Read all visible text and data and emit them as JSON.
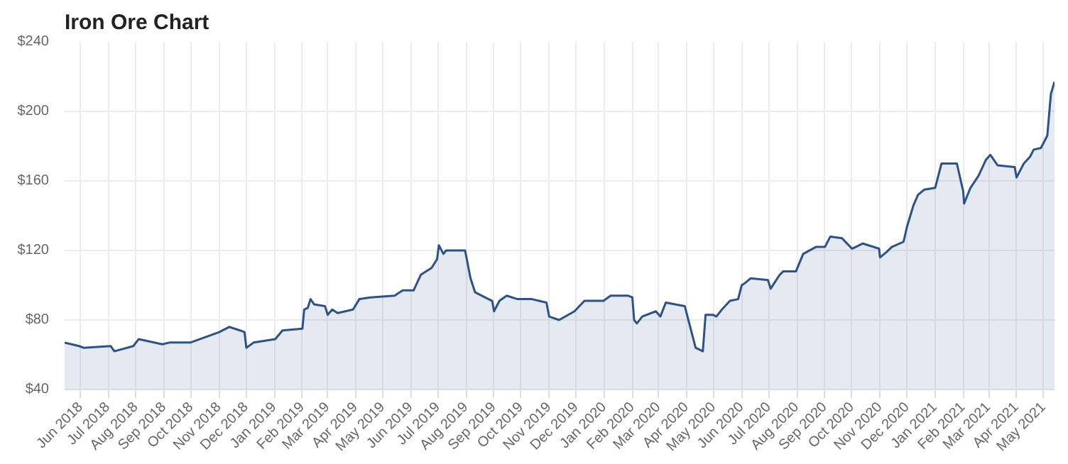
{
  "chart_data": {
    "type": "area",
    "title": "Iron Ore Chart",
    "x": [
      "2018-05-14",
      "2018-05-30",
      "2018-06-04",
      "2018-07-04",
      "2018-07-08",
      "2018-07-29",
      "2018-08-04",
      "2018-08-30",
      "2018-09-07",
      "2018-09-30",
      "2018-11-01",
      "2018-11-12",
      "2018-11-24",
      "2018-11-29",
      "2018-12-01",
      "2018-12-09",
      "2019-01-02",
      "2019-01-10",
      "2019-02-01",
      "2019-02-03",
      "2019-02-07",
      "2019-02-10",
      "2019-02-14",
      "2019-02-26",
      "2019-03-01",
      "2019-03-06",
      "2019-03-12",
      "2019-03-29",
      "2019-04-05",
      "2019-04-17",
      "2019-05-14",
      "2019-05-23",
      "2019-06-04",
      "2019-06-12",
      "2019-06-24",
      "2019-06-30",
      "2019-07-02",
      "2019-07-07",
      "2019-07-10",
      "2019-07-31",
      "2019-08-06",
      "2019-08-11",
      "2019-08-22",
      "2019-08-30",
      "2019-09-01",
      "2019-09-07",
      "2019-09-15",
      "2019-09-27",
      "2019-10-13",
      "2019-10-29",
      "2019-11-01",
      "2019-11-12",
      "2019-11-29",
      "2019-12-10",
      "2019-12-31",
      "2020-01-08",
      "2020-01-27",
      "2020-02-01",
      "2020-02-03",
      "2020-02-06",
      "2020-02-12",
      "2020-02-27",
      "2020-03-03",
      "2020-03-09",
      "2020-03-30",
      "2020-04-11",
      "2020-04-19",
      "2020-04-22",
      "2020-04-30",
      "2020-05-04",
      "2020-05-10",
      "2020-05-19",
      "2020-05-28",
      "2020-06-01",
      "2020-06-04",
      "2020-06-11",
      "2020-06-30",
      "2020-07-03",
      "2020-07-13",
      "2020-07-17",
      "2020-07-31",
      "2020-08-08",
      "2020-08-22",
      "2020-09-01",
      "2020-09-07",
      "2020-09-20",
      "2020-10-01",
      "2020-10-13",
      "2020-10-31",
      "2020-11-01",
      "2020-11-08",
      "2020-11-14",
      "2020-11-27",
      "2020-12-01",
      "2020-12-08",
      "2020-12-13",
      "2020-12-20",
      "2021-01-01",
      "2021-01-08",
      "2021-01-25",
      "2021-02-01",
      "2021-02-02",
      "2021-02-09",
      "2021-02-18",
      "2021-02-26",
      "2021-03-03",
      "2021-03-11",
      "2021-03-30",
      "2021-04-01",
      "2021-04-09",
      "2021-04-16",
      "2021-04-20",
      "2021-04-28",
      "2021-05-05",
      "2021-05-09",
      "2021-05-13"
    ],
    "series": [
      {
        "color": "#2d5189",
        "values": [
          67,
          65,
          64,
          65,
          62,
          65,
          69,
          66,
          67,
          67,
          73,
          76,
          74,
          73,
          64,
          67,
          69,
          74,
          75,
          86,
          87,
          92,
          89,
          88,
          83,
          86,
          84,
          86,
          92,
          93,
          94,
          97,
          97,
          106,
          110,
          115,
          123,
          118,
          120,
          120,
          104,
          96,
          93,
          91,
          85,
          91,
          94,
          92,
          92,
          90,
          82,
          80,
          85,
          91,
          91,
          94,
          94,
          93,
          80,
          78,
          82,
          85,
          82,
          90,
          88,
          64,
          62,
          83,
          83,
          82,
          86,
          91,
          92,
          100,
          101,
          104,
          103,
          98,
          106,
          108,
          108,
          118,
          122,
          122,
          128,
          127,
          121,
          124,
          121,
          116,
          119,
          122,
          125,
          134,
          146,
          152,
          155,
          156,
          170,
          170,
          154,
          147,
          156,
          163,
          172,
          175,
          169,
          168,
          162,
          170,
          174,
          178,
          179,
          186,
          210,
          217
        ]
      }
    ],
    "xlim": [
      "2018-05-14",
      "2021-05-13"
    ],
    "xticks": [
      {
        "value": "2018-06-01",
        "label": "Jun 2018"
      },
      {
        "value": "2018-07-01",
        "label": "Jul 2018"
      },
      {
        "value": "2018-08-01",
        "label": "Aug 2018"
      },
      {
        "value": "2018-09-01",
        "label": "Sep 2018"
      },
      {
        "value": "2018-10-01",
        "label": "Oct 2018"
      },
      {
        "value": "2018-11-01",
        "label": "Nov 2018"
      },
      {
        "value": "2018-12-01",
        "label": "Dec 2018"
      },
      {
        "value": "2019-01-01",
        "label": "Jan 2019"
      },
      {
        "value": "2019-02-01",
        "label": "Feb 2019"
      },
      {
        "value": "2019-03-01",
        "label": "Mar 2019"
      },
      {
        "value": "2019-04-01",
        "label": "Apr 2019"
      },
      {
        "value": "2019-05-01",
        "label": "May 2019"
      },
      {
        "value": "2019-06-01",
        "label": "Jun 2019"
      },
      {
        "value": "2019-07-01",
        "label": "Jul 2019"
      },
      {
        "value": "2019-08-01",
        "label": "Aug 2019"
      },
      {
        "value": "2019-09-01",
        "label": "Sep 2019"
      },
      {
        "value": "2019-10-01",
        "label": "Oct 2019"
      },
      {
        "value": "2019-11-01",
        "label": "Nov 2019"
      },
      {
        "value": "2019-12-01",
        "label": "Dec 2019"
      },
      {
        "value": "2020-01-01",
        "label": "Jan 2020"
      },
      {
        "value": "2020-02-01",
        "label": "Feb 2020"
      },
      {
        "value": "2020-03-01",
        "label": "Mar 2020"
      },
      {
        "value": "2020-04-01",
        "label": "Apr 2020"
      },
      {
        "value": "2020-05-01",
        "label": "May 2020"
      },
      {
        "value": "2020-06-01",
        "label": "Jun 2020"
      },
      {
        "value": "2020-07-01",
        "label": "Jul 2020"
      },
      {
        "value": "2020-08-01",
        "label": "Aug 2020"
      },
      {
        "value": "2020-09-01",
        "label": "Sep 2020"
      },
      {
        "value": "2020-10-01",
        "label": "Oct 2020"
      },
      {
        "value": "2020-11-01",
        "label": "Nov 2020"
      },
      {
        "value": "2020-12-01",
        "label": "Dec 2020"
      },
      {
        "value": "2021-01-01",
        "label": "Jan 2021"
      },
      {
        "value": "2021-02-01",
        "label": "Feb 2021"
      },
      {
        "value": "2021-03-01",
        "label": "Mar 2021"
      },
      {
        "value": "2021-04-01",
        "label": "Apr 2021"
      },
      {
        "value": "2021-05-01",
        "label": "May 2021"
      }
    ],
    "ylim": [
      40,
      240
    ],
    "yticks": [
      {
        "value": 40,
        "label": "$40"
      },
      {
        "value": 80,
        "label": "$80"
      },
      {
        "value": 120,
        "label": "$120"
      },
      {
        "value": 160,
        "label": "$160"
      },
      {
        "value": 200,
        "label": "$200"
      },
      {
        "value": 240,
        "label": "$240"
      }
    ],
    "grid": true,
    "marker": "none",
    "line_style": "solid"
  }
}
